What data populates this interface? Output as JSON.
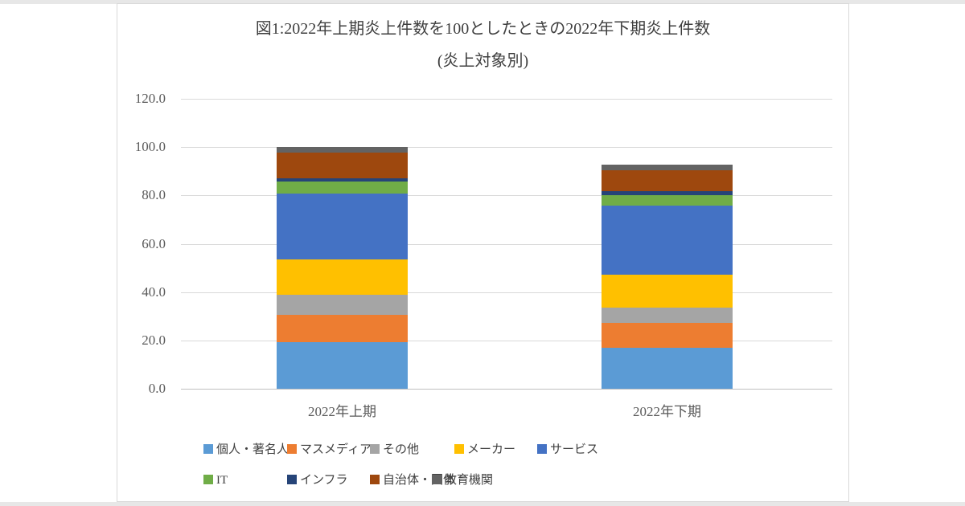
{
  "page": {
    "edge_strip_color": "#e7e7e7",
    "frame_border_color": "#d9d9d9"
  },
  "chart": {
    "title_line1": "図1:2022年上期炎上件数を100としたときの2022年下期炎上件数",
    "title_line2": "(炎上対象別)"
  },
  "chart_data": {
    "type": "bar",
    "stacked": true,
    "title": "図1:2022年上期炎上件数を100としたときの2022年下期炎上件数(炎上対象別)",
    "categories": [
      "2022年上期",
      "2022年下期"
    ],
    "series": [
      {
        "name": "個人・著名人",
        "color": "#5B9BD5",
        "values": [
          19.4,
          17.0
        ]
      },
      {
        "name": "マスメディア",
        "color": "#ED7D31",
        "values": [
          11.3,
          10.4
        ]
      },
      {
        "name": "その他",
        "color": "#A5A5A5",
        "values": [
          8.3,
          6.1
        ]
      },
      {
        "name": "メーカー",
        "color": "#FFC000",
        "values": [
          14.6,
          13.9
        ]
      },
      {
        "name": "サービス",
        "color": "#4472C4",
        "values": [
          27.1,
          28.3
        ]
      },
      {
        "name": "IT",
        "color": "#70AD47",
        "values": [
          5.2,
          4.3
        ]
      },
      {
        "name": "インフラ",
        "color": "#264478",
        "values": [
          1.2,
          1.7
        ]
      },
      {
        "name": "自治体・団体",
        "color": "#9E480E",
        "values": [
          10.5,
          8.7
        ]
      },
      {
        "name": "教育機関",
        "color": "#636363",
        "values": [
          2.4,
          2.2
        ]
      }
    ],
    "ylim": [
      0,
      120
    ],
    "ytick_step": 20,
    "ytick_labels": [
      "0.0",
      "20.0",
      "40.0",
      "60.0",
      "80.0",
      "100.0",
      "120.0"
    ],
    "grid": true,
    "gridline_color": "#d9d9d9",
    "axis_line_color": "#bfbfbf",
    "axis_label_color": "#595959",
    "legend_position": "bottom"
  }
}
